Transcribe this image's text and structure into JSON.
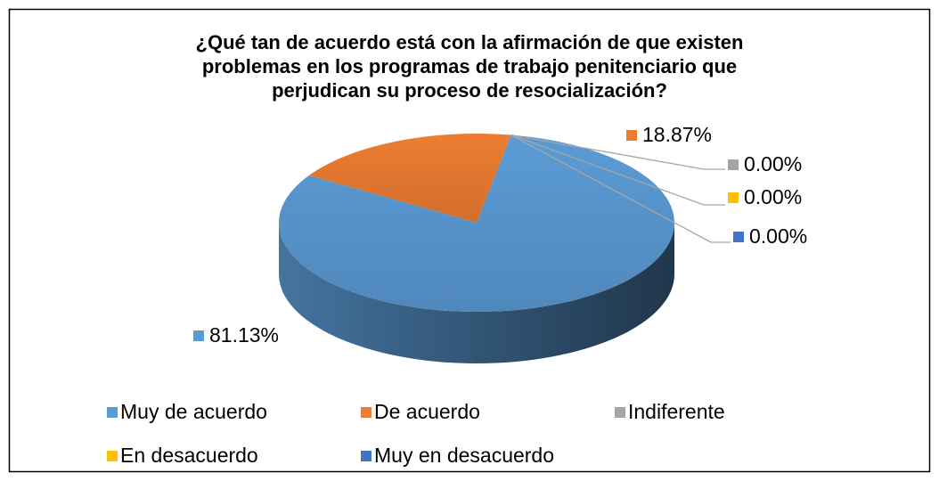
{
  "chart_data": {
    "type": "pie3d",
    "title": "¿Qué tan de acuerdo está con la afirmación de que existen problemas en los programas de trabajo penitenciario que perjudican su proceso de resocialización?",
    "categories": [
      "Muy de acuerdo",
      "De acuerdo",
      "Indiferente",
      "En desacuerdo",
      "Muy en desacuerdo"
    ],
    "values": [
      81.13,
      18.87,
      0,
      0,
      0
    ],
    "value_labels": [
      "81.13%",
      "18.87%",
      "0.00%",
      "0.00%",
      "0.00%"
    ],
    "colors": [
      "#5b9bd5",
      "#ed7d31",
      "#a5a5a5",
      "#ffc000",
      "#4472c4"
    ],
    "legend": "bottom"
  }
}
